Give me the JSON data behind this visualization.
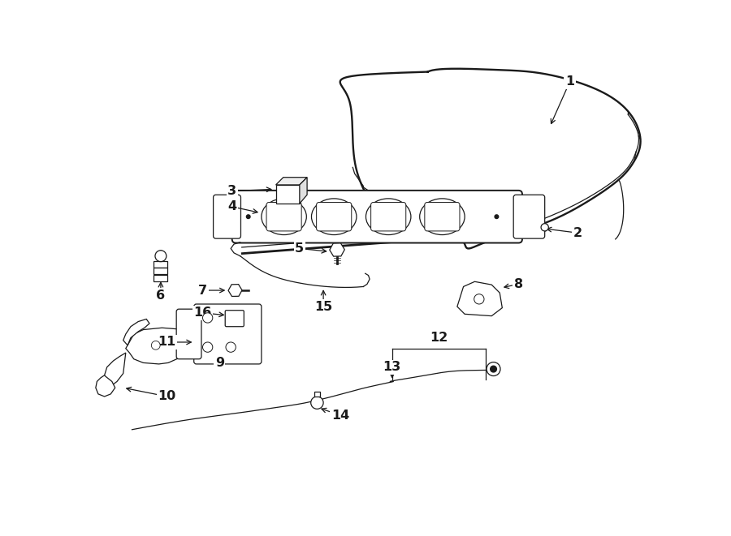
{
  "bg_color": "#ffffff",
  "lc": "#1a1a1a",
  "lw_main": 1.4,
  "lw_thin": 0.9,
  "lw_thick": 2.2,
  "label_fs": 11.5
}
